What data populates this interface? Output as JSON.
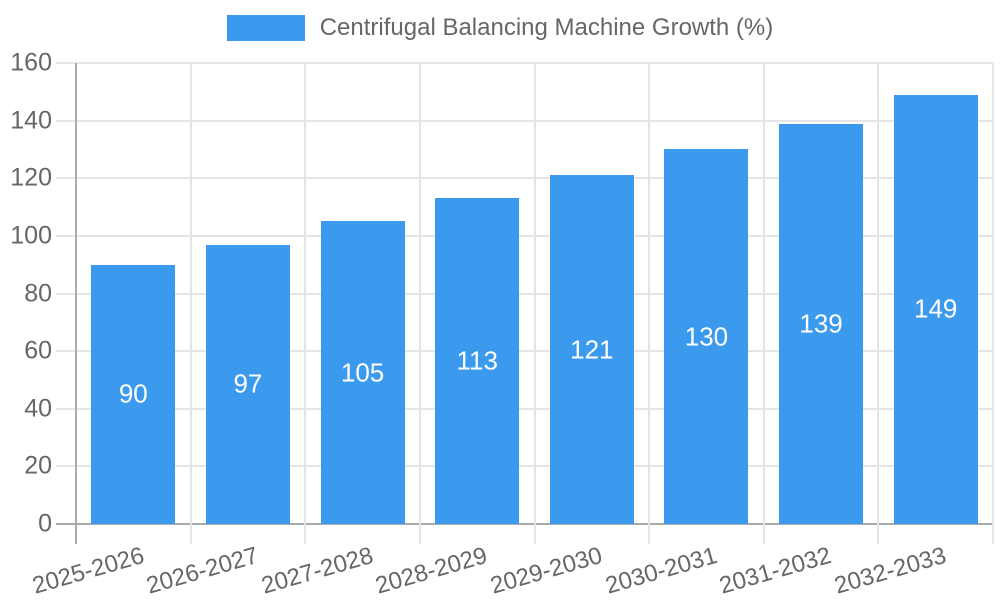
{
  "chart_data": {
    "type": "bar",
    "title": "Centrifugal Balancing Machine Growth (%)",
    "legend": [
      "Centrifugal Balancing Machine Growth (%)"
    ],
    "legend_position": "top",
    "categories": [
      "2025-2026",
      "2026-2027",
      "2027-2028",
      "2028-2029",
      "2029-2030",
      "2030-2031",
      "2031-2032",
      "2032-2033"
    ],
    "series": [
      {
        "name": "Centrifugal Balancing Machine Growth (%)",
        "values": [
          90,
          97,
          105,
          113,
          121,
          130,
          139,
          149
        ]
      }
    ],
    "value_labels": [
      "90",
      "97",
      "105",
      "113",
      "121",
      "130",
      "139",
      "149"
    ],
    "xlabel": "",
    "ylabel": "",
    "ylim": [
      0,
      160
    ],
    "yticks": [
      0,
      20,
      40,
      60,
      80,
      100,
      120,
      140,
      160
    ],
    "grid": true,
    "colors": {
      "bar": "#3b9aee",
      "value_label": "#ffffff",
      "tick_label": "#666666",
      "gridline": "#e5e5e5",
      "axis_line": "#ababab",
      "background": "#ffffff"
    }
  }
}
